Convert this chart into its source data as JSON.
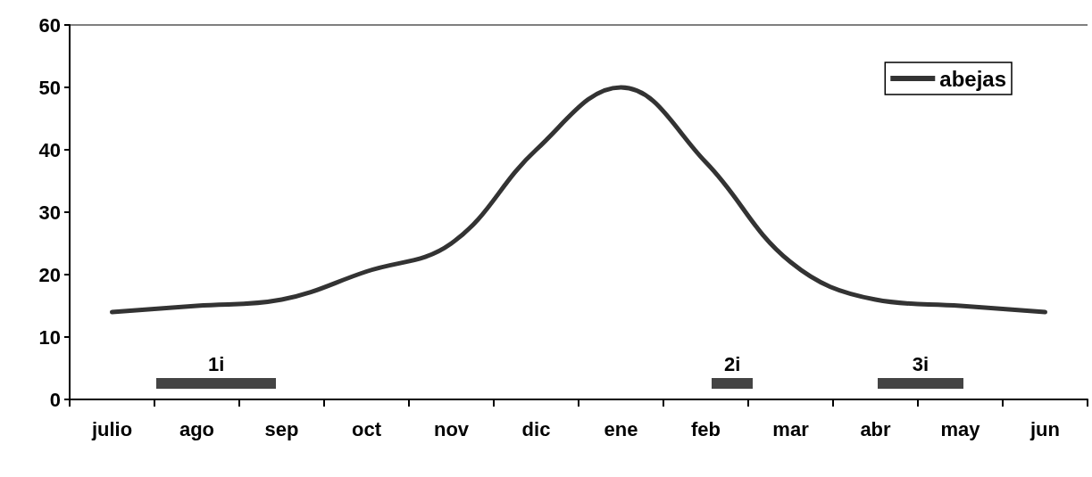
{
  "chart_data": {
    "type": "line",
    "categories": [
      "julio",
      "ago",
      "sep",
      "oct",
      "nov",
      "dic",
      "ene",
      "feb",
      "mar",
      "abr",
      "may",
      "jun"
    ],
    "series": [
      {
        "name": "abejas",
        "color": "#333333",
        "values": [
          14,
          15,
          16,
          20.5,
          25,
          40,
          50,
          38,
          22,
          16,
          15,
          14
        ]
      }
    ],
    "ylim": [
      0,
      60
    ],
    "yticks": [
      0,
      10,
      20,
      30,
      40,
      50,
      60
    ],
    "grid": false,
    "legend": "top right",
    "marker": "none",
    "line_style": "solid",
    "annotations": [
      "1i",
      "2i",
      "3i"
    ]
  }
}
